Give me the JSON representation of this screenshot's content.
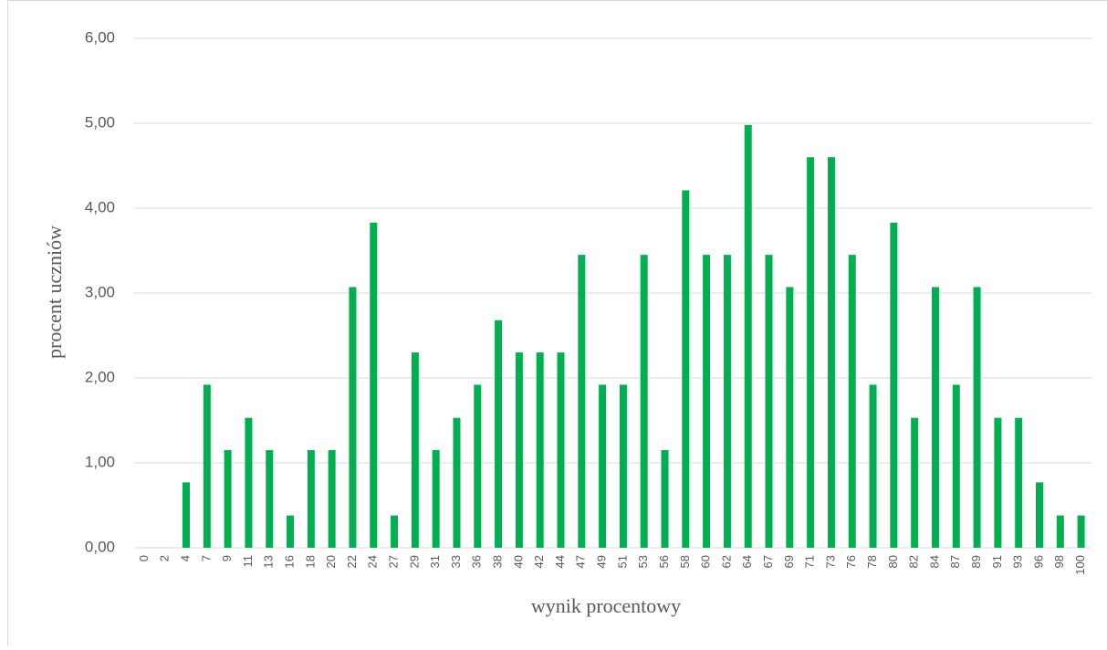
{
  "chart_data": {
    "type": "bar",
    "xlabel": "wynik procentowy",
    "ylabel": "procent uczniów",
    "categories": [
      "0",
      "2",
      "4",
      "7",
      "9",
      "11",
      "13",
      "16",
      "18",
      "20",
      "22",
      "24",
      "27",
      "29",
      "31",
      "33",
      "36",
      "38",
      "40",
      "42",
      "44",
      "47",
      "49",
      "51",
      "53",
      "56",
      "58",
      "60",
      "62",
      "64",
      "67",
      "69",
      "71",
      "73",
      "76",
      "78",
      "80",
      "82",
      "84",
      "87",
      "89",
      "91",
      "93",
      "96",
      "98",
      "100"
    ],
    "values": [
      0,
      0,
      0.77,
      1.92,
      1.15,
      1.53,
      1.15,
      0.38,
      1.15,
      1.15,
      3.07,
      3.83,
      0.38,
      2.3,
      1.15,
      1.53,
      1.92,
      2.68,
      2.3,
      2.3,
      2.3,
      3.45,
      1.92,
      1.92,
      3.45,
      1.15,
      4.21,
      3.45,
      3.45,
      4.98,
      3.45,
      3.07,
      4.6,
      4.6,
      3.45,
      1.92,
      3.83,
      1.53,
      3.07,
      1.92,
      3.07,
      1.53,
      1.53,
      0.77,
      0.38,
      0.38
    ],
    "color": "#00b050",
    "ylim": [
      0,
      6
    ],
    "yticks": [
      {
        "value": 0,
        "label": "0,00"
      },
      {
        "value": 1,
        "label": "1,00"
      },
      {
        "value": 2,
        "label": "2,00"
      },
      {
        "value": 3,
        "label": "3,00"
      },
      {
        "value": 4,
        "label": "4,00"
      },
      {
        "value": 5,
        "label": "5,00"
      },
      {
        "value": 6,
        "label": "6,00"
      }
    ],
    "grid": true
  }
}
